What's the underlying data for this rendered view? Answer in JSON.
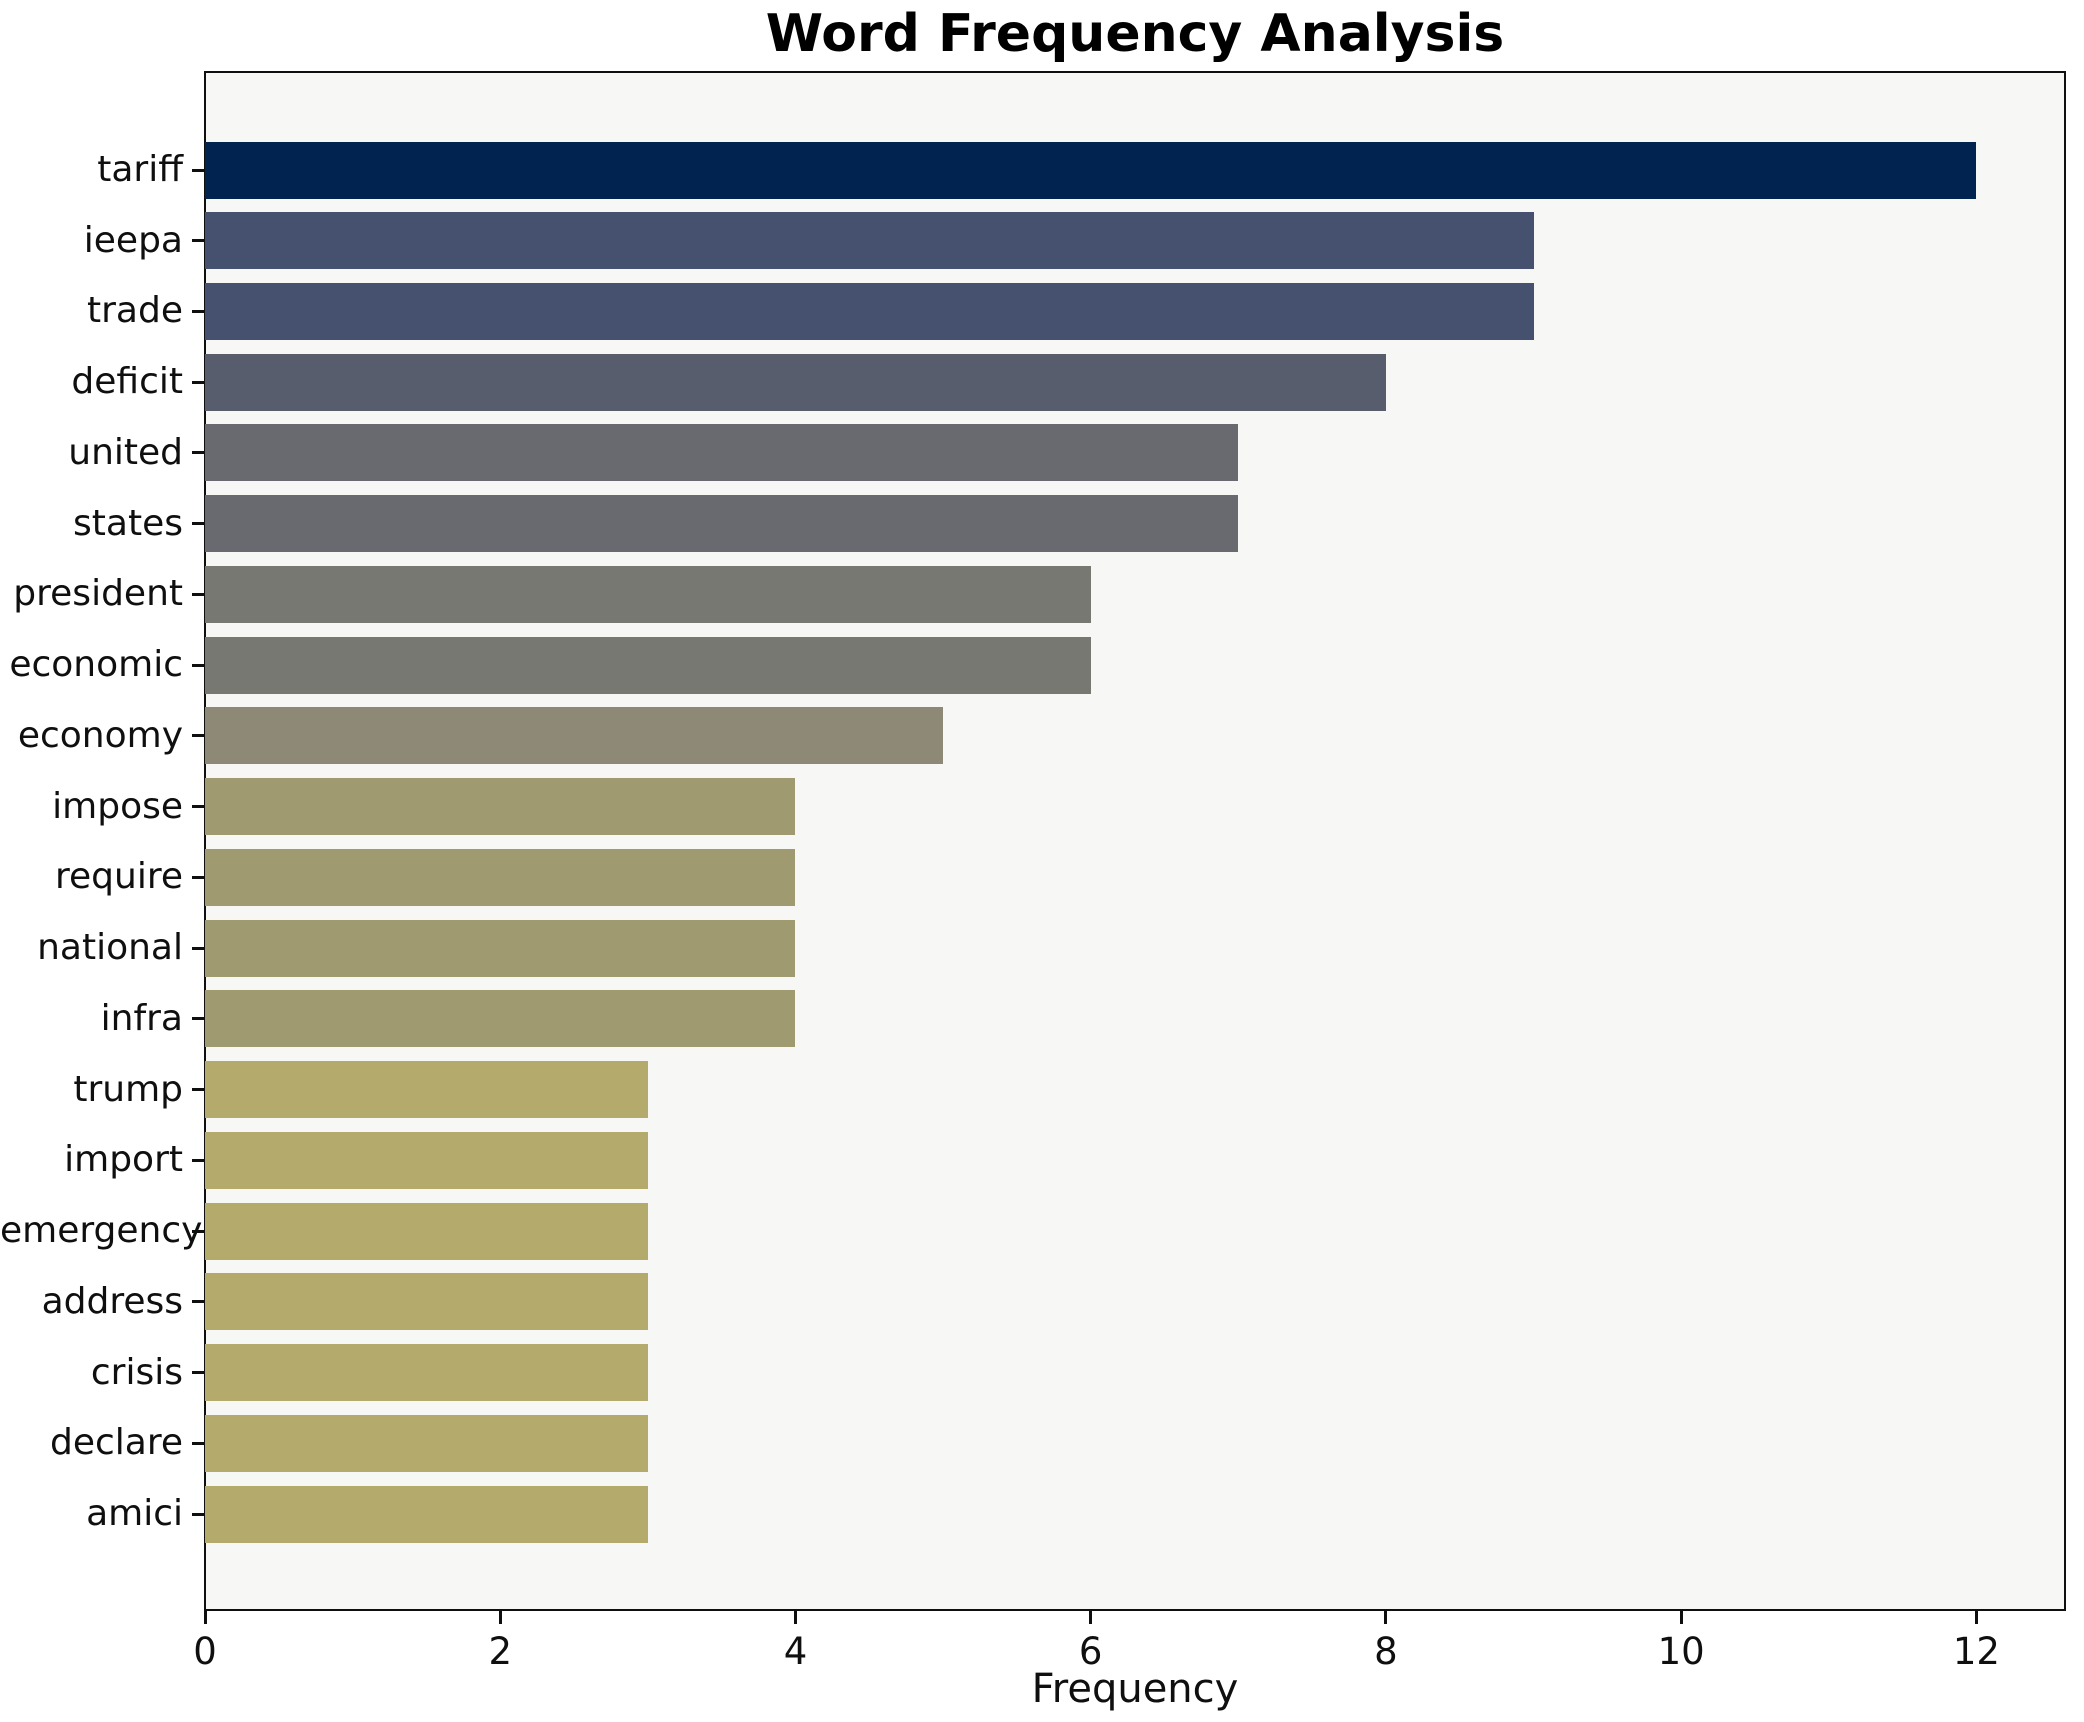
{
  "chart_data": {
    "type": "bar",
    "orientation": "horizontal",
    "title": "Word Frequency Analysis",
    "xlabel": "Frequency",
    "ylabel": "",
    "categories": [
      "tariff",
      "ieepa",
      "trade",
      "deficit",
      "united",
      "states",
      "president",
      "economic",
      "economy",
      "impose",
      "require",
      "national",
      "infra",
      "trump",
      "import",
      "emergency",
      "address",
      "crisis",
      "declare",
      "amici"
    ],
    "values": [
      12,
      9,
      9,
      8,
      7,
      7,
      6,
      6,
      5,
      4,
      4,
      4,
      4,
      3,
      3,
      3,
      3,
      3,
      3,
      3
    ],
    "bar_colors": [
      "#00234f",
      "#45516e",
      "#45516e",
      "#575d6d",
      "#696a6f",
      "#696a6f",
      "#787872",
      "#787872",
      "#8e8977",
      "#a09a71",
      "#a09a71",
      "#a09a71",
      "#a09a71",
      "#b3aa6b",
      "#b3aa6b",
      "#b3aa6b",
      "#b3aa6b",
      "#b3aa6b",
      "#b3aa6b",
      "#b3aa6b"
    ],
    "xticks": [
      0,
      2,
      4,
      6,
      8,
      10,
      12
    ],
    "xlim": [
      0,
      12.6
    ],
    "grid": false,
    "legend": null,
    "plot_background": "#f7f7f6",
    "figure_background": "#ffffff",
    "spine_color": "#0f0f0f",
    "text_color": "#0f0f0f"
  }
}
